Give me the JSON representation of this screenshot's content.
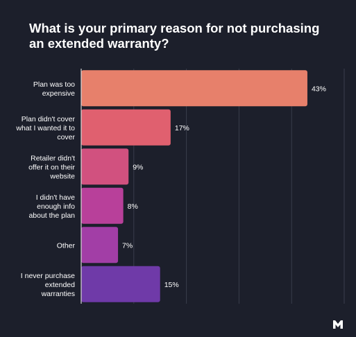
{
  "title": "What is your primary reason for not purchasing an extended warranty?",
  "logo": "brand-m-logo",
  "colors": {
    "background": "#1c1f2b",
    "gridline": "#3a3e4c",
    "axis": "#d8d8d8",
    "text": "#ffffff"
  },
  "chart_data": {
    "type": "bar",
    "orientation": "horizontal",
    "categories": [
      [
        "Plan was too",
        "expensive"
      ],
      [
        "Plan didn't cover",
        "what I wanted it to",
        "cover"
      ],
      [
        "Retailer didn't",
        "offer it on their",
        "website"
      ],
      [
        "I didn't have",
        "enough info",
        "about the plan"
      ],
      [
        "Other"
      ],
      [
        "I never purchase",
        "extended",
        "warranties"
      ]
    ],
    "values": [
      43,
      17,
      9,
      8,
      7,
      15
    ],
    "value_labels": [
      "43%",
      "17%",
      "9%",
      "8%",
      "7%",
      "15%"
    ],
    "bar_colors": [
      "#e7806b",
      "#e0606f",
      "#d1517f",
      "#b8409a",
      "#a23ea6",
      "#6f3aa8"
    ],
    "xlim": [
      0,
      50
    ],
    "grid": true,
    "xlabel": "",
    "ylabel": ""
  }
}
